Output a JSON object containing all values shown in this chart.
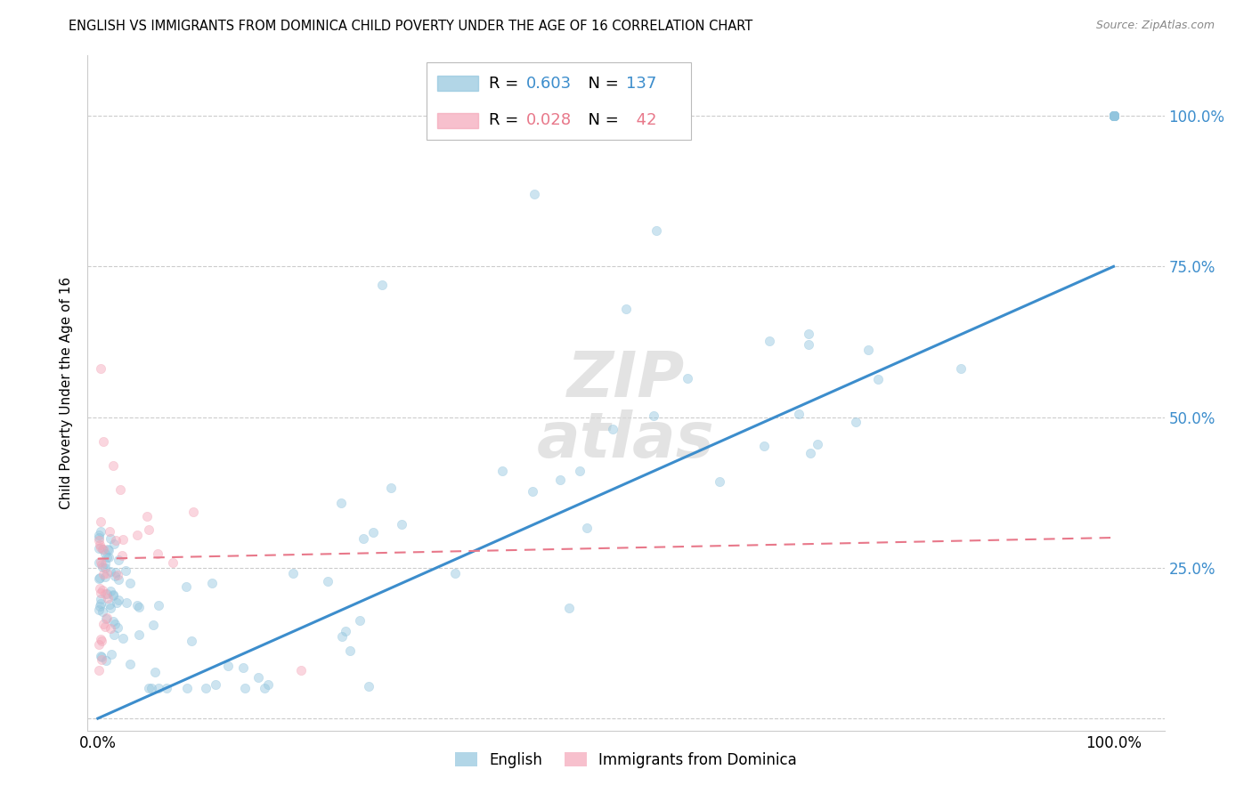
{
  "title": "ENGLISH VS IMMIGRANTS FROM DOMINICA CHILD POVERTY UNDER THE AGE OF 16 CORRELATION CHART",
  "source": "Source: ZipAtlas.com",
  "ylabel": "Child Poverty Under the Age of 16",
  "english_R": 0.603,
  "english_N": 137,
  "dominica_R": 0.028,
  "dominica_N": 42,
  "english_color": "#92c5de",
  "dominica_color": "#f4a6b8",
  "english_line_color": "#3c8dcc",
  "dominica_line_color": "#e8788a",
  "legend_english": "English",
  "legend_dominica": "Immigrants from Dominica",
  "ytick_values": [
    0.0,
    0.25,
    0.5,
    0.75,
    1.0
  ],
  "ytick_labels": [
    "",
    "25.0%",
    "50.0%",
    "75.0%",
    "100.0%"
  ],
  "xtick_values": [
    0.0,
    0.25,
    0.5,
    0.75,
    1.0
  ],
  "xtick_labels": [
    "0.0%",
    "",
    "",
    "",
    "100.0%"
  ],
  "xlim": [
    -0.01,
    1.05
  ],
  "ylim": [
    -0.02,
    1.1
  ],
  "english_line_x": [
    0.0,
    1.0
  ],
  "english_line_y": [
    0.0,
    0.75
  ],
  "dominica_line_x": [
    0.0,
    1.0
  ],
  "dominica_line_y": [
    0.265,
    0.3
  ],
  "watermark_line1": "ZIP",
  "watermark_line2": "atlas",
  "grid_color": "#cccccc",
  "background_color": "#ffffff",
  "title_fontsize": 10.5,
  "source_fontsize": 9,
  "axis_label_fontsize": 11,
  "tick_fontsize": 12,
  "marker_size": 55,
  "marker_alpha": 0.45
}
